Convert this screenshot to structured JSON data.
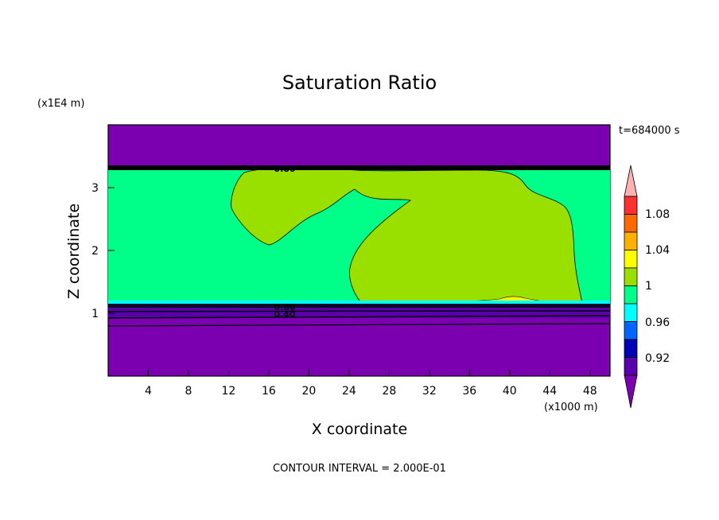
{
  "chart_data": {
    "type": "contour",
    "title": "Saturation Ratio",
    "timestamp": "t=684000 s",
    "xlabel": "X coordinate",
    "ylabel": "Z coordinate",
    "x_multiplier": "(x1000 m)",
    "y_multiplier": "(x1E4 m)",
    "contour_interval": "CONTOUR INTERVAL = 2.000E-01",
    "xlim": [
      0,
      50
    ],
    "ylim": [
      0,
      4
    ],
    "x_ticks": [
      4,
      8,
      12,
      16,
      20,
      24,
      28,
      32,
      36,
      40,
      44,
      48
    ],
    "x_tick_labels": [
      "4",
      "8",
      "12",
      "16",
      "20",
      "24",
      "28",
      "32",
      "36",
      "40",
      "44",
      "48"
    ],
    "y_ticks": [
      1,
      2,
      3
    ],
    "y_tick_labels": [
      "1",
      "2",
      "3"
    ],
    "colorbar": {
      "labels": [
        "1.08",
        "1.04",
        "1",
        "0.96",
        "0.92"
      ],
      "colors": [
        "#ffb2b2",
        "#ff3030",
        "#ff6a00",
        "#ffb000",
        "#ffff00",
        "#99e000",
        "#00ff88",
        "#00ffff",
        "#0066ff",
        "#0000b8",
        "#5a00aa",
        "#7b00b0"
      ]
    },
    "contour_labels": [
      "0.80",
      "0.80",
      "0.40"
    ],
    "regions": [
      {
        "name": "upper-dry-band",
        "color": "#7b00b0",
        "xlim": [
          0,
          50
        ],
        "ylim": [
          3.35,
          4.0
        ]
      },
      {
        "name": "saturated-layer",
        "color": "#00ff88",
        "xlim": [
          0,
          50
        ],
        "ylim": [
          1.12,
          3.3
        ]
      },
      {
        "name": "supersaturated-left-lobe",
        "color": "#99e000"
      },
      {
        "name": "supersaturated-main-lobe",
        "color": "#99e000"
      },
      {
        "name": "supersaturated-tail",
        "color": "#ffff00"
      },
      {
        "name": "lower-dry-band",
        "color": "#7b00b0",
        "xlim": [
          0,
          50
        ],
        "ylim": [
          0,
          1.08
        ]
      }
    ]
  }
}
